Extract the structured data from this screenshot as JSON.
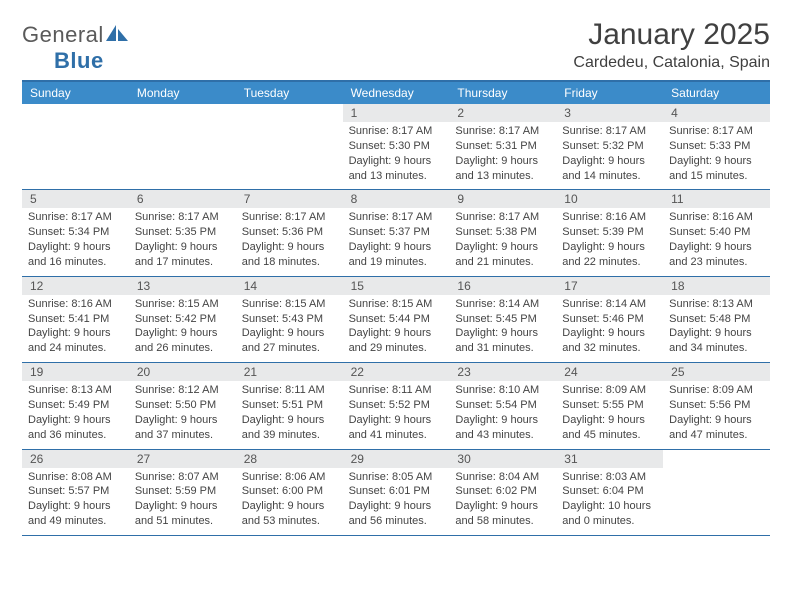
{
  "brand": {
    "part1": "General",
    "part2": "Blue"
  },
  "title": "January 2025",
  "location": "Cardedeu, Catalonia, Spain",
  "colors": {
    "header_bar": "#3b8bc9",
    "rule": "#2f6fa8",
    "daynum_bg": "#e8e9ea",
    "text": "#404040"
  },
  "calendar": {
    "day_labels": [
      "Sunday",
      "Monday",
      "Tuesday",
      "Wednesday",
      "Thursday",
      "Friday",
      "Saturday"
    ],
    "weeks": [
      [
        {
          "blank": true
        },
        {
          "blank": true
        },
        {
          "blank": true
        },
        {
          "day": "1",
          "sunrise": "Sunrise: 8:17 AM",
          "sunset": "Sunset: 5:30 PM",
          "daylight1": "Daylight: 9 hours",
          "daylight2": "and 13 minutes."
        },
        {
          "day": "2",
          "sunrise": "Sunrise: 8:17 AM",
          "sunset": "Sunset: 5:31 PM",
          "daylight1": "Daylight: 9 hours",
          "daylight2": "and 13 minutes."
        },
        {
          "day": "3",
          "sunrise": "Sunrise: 8:17 AM",
          "sunset": "Sunset: 5:32 PM",
          "daylight1": "Daylight: 9 hours",
          "daylight2": "and 14 minutes."
        },
        {
          "day": "4",
          "sunrise": "Sunrise: 8:17 AM",
          "sunset": "Sunset: 5:33 PM",
          "daylight1": "Daylight: 9 hours",
          "daylight2": "and 15 minutes."
        }
      ],
      [
        {
          "day": "5",
          "sunrise": "Sunrise: 8:17 AM",
          "sunset": "Sunset: 5:34 PM",
          "daylight1": "Daylight: 9 hours",
          "daylight2": "and 16 minutes."
        },
        {
          "day": "6",
          "sunrise": "Sunrise: 8:17 AM",
          "sunset": "Sunset: 5:35 PM",
          "daylight1": "Daylight: 9 hours",
          "daylight2": "and 17 minutes."
        },
        {
          "day": "7",
          "sunrise": "Sunrise: 8:17 AM",
          "sunset": "Sunset: 5:36 PM",
          "daylight1": "Daylight: 9 hours",
          "daylight2": "and 18 minutes."
        },
        {
          "day": "8",
          "sunrise": "Sunrise: 8:17 AM",
          "sunset": "Sunset: 5:37 PM",
          "daylight1": "Daylight: 9 hours",
          "daylight2": "and 19 minutes."
        },
        {
          "day": "9",
          "sunrise": "Sunrise: 8:17 AM",
          "sunset": "Sunset: 5:38 PM",
          "daylight1": "Daylight: 9 hours",
          "daylight2": "and 21 minutes."
        },
        {
          "day": "10",
          "sunrise": "Sunrise: 8:16 AM",
          "sunset": "Sunset: 5:39 PM",
          "daylight1": "Daylight: 9 hours",
          "daylight2": "and 22 minutes."
        },
        {
          "day": "11",
          "sunrise": "Sunrise: 8:16 AM",
          "sunset": "Sunset: 5:40 PM",
          "daylight1": "Daylight: 9 hours",
          "daylight2": "and 23 minutes."
        }
      ],
      [
        {
          "day": "12",
          "sunrise": "Sunrise: 8:16 AM",
          "sunset": "Sunset: 5:41 PM",
          "daylight1": "Daylight: 9 hours",
          "daylight2": "and 24 minutes."
        },
        {
          "day": "13",
          "sunrise": "Sunrise: 8:15 AM",
          "sunset": "Sunset: 5:42 PM",
          "daylight1": "Daylight: 9 hours",
          "daylight2": "and 26 minutes."
        },
        {
          "day": "14",
          "sunrise": "Sunrise: 8:15 AM",
          "sunset": "Sunset: 5:43 PM",
          "daylight1": "Daylight: 9 hours",
          "daylight2": "and 27 minutes."
        },
        {
          "day": "15",
          "sunrise": "Sunrise: 8:15 AM",
          "sunset": "Sunset: 5:44 PM",
          "daylight1": "Daylight: 9 hours",
          "daylight2": "and 29 minutes."
        },
        {
          "day": "16",
          "sunrise": "Sunrise: 8:14 AM",
          "sunset": "Sunset: 5:45 PM",
          "daylight1": "Daylight: 9 hours",
          "daylight2": "and 31 minutes."
        },
        {
          "day": "17",
          "sunrise": "Sunrise: 8:14 AM",
          "sunset": "Sunset: 5:46 PM",
          "daylight1": "Daylight: 9 hours",
          "daylight2": "and 32 minutes."
        },
        {
          "day": "18",
          "sunrise": "Sunrise: 8:13 AM",
          "sunset": "Sunset: 5:48 PM",
          "daylight1": "Daylight: 9 hours",
          "daylight2": "and 34 minutes."
        }
      ],
      [
        {
          "day": "19",
          "sunrise": "Sunrise: 8:13 AM",
          "sunset": "Sunset: 5:49 PM",
          "daylight1": "Daylight: 9 hours",
          "daylight2": "and 36 minutes."
        },
        {
          "day": "20",
          "sunrise": "Sunrise: 8:12 AM",
          "sunset": "Sunset: 5:50 PM",
          "daylight1": "Daylight: 9 hours",
          "daylight2": "and 37 minutes."
        },
        {
          "day": "21",
          "sunrise": "Sunrise: 8:11 AM",
          "sunset": "Sunset: 5:51 PM",
          "daylight1": "Daylight: 9 hours",
          "daylight2": "and 39 minutes."
        },
        {
          "day": "22",
          "sunrise": "Sunrise: 8:11 AM",
          "sunset": "Sunset: 5:52 PM",
          "daylight1": "Daylight: 9 hours",
          "daylight2": "and 41 minutes."
        },
        {
          "day": "23",
          "sunrise": "Sunrise: 8:10 AM",
          "sunset": "Sunset: 5:54 PM",
          "daylight1": "Daylight: 9 hours",
          "daylight2": "and 43 minutes."
        },
        {
          "day": "24",
          "sunrise": "Sunrise: 8:09 AM",
          "sunset": "Sunset: 5:55 PM",
          "daylight1": "Daylight: 9 hours",
          "daylight2": "and 45 minutes."
        },
        {
          "day": "25",
          "sunrise": "Sunrise: 8:09 AM",
          "sunset": "Sunset: 5:56 PM",
          "daylight1": "Daylight: 9 hours",
          "daylight2": "and 47 minutes."
        }
      ],
      [
        {
          "day": "26",
          "sunrise": "Sunrise: 8:08 AM",
          "sunset": "Sunset: 5:57 PM",
          "daylight1": "Daylight: 9 hours",
          "daylight2": "and 49 minutes."
        },
        {
          "day": "27",
          "sunrise": "Sunrise: 8:07 AM",
          "sunset": "Sunset: 5:59 PM",
          "daylight1": "Daylight: 9 hours",
          "daylight2": "and 51 minutes."
        },
        {
          "day": "28",
          "sunrise": "Sunrise: 8:06 AM",
          "sunset": "Sunset: 6:00 PM",
          "daylight1": "Daylight: 9 hours",
          "daylight2": "and 53 minutes."
        },
        {
          "day": "29",
          "sunrise": "Sunrise: 8:05 AM",
          "sunset": "Sunset: 6:01 PM",
          "daylight1": "Daylight: 9 hours",
          "daylight2": "and 56 minutes."
        },
        {
          "day": "30",
          "sunrise": "Sunrise: 8:04 AM",
          "sunset": "Sunset: 6:02 PM",
          "daylight1": "Daylight: 9 hours",
          "daylight2": "and 58 minutes."
        },
        {
          "day": "31",
          "sunrise": "Sunrise: 8:03 AM",
          "sunset": "Sunset: 6:04 PM",
          "daylight1": "Daylight: 10 hours",
          "daylight2": "and 0 minutes."
        },
        {
          "blank": true
        }
      ]
    ]
  }
}
